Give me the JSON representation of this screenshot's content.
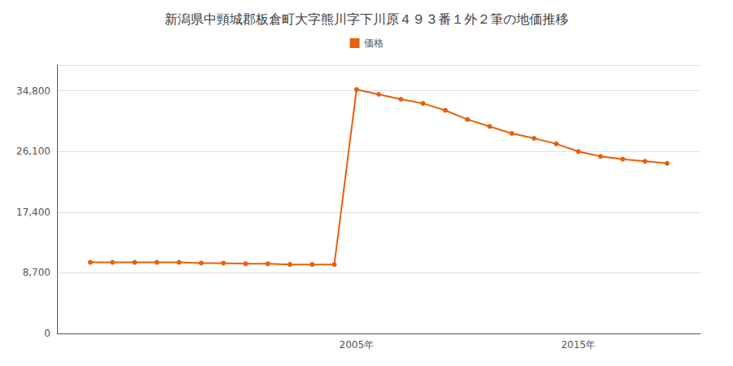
{
  "chart_data": {
    "type": "line",
    "title": "新潟県中頸城郡板倉町大字熊川字下川原４９３番１外２筆の地価推移",
    "x": [
      1993,
      1994,
      1995,
      1996,
      1997,
      1998,
      1999,
      2000,
      2001,
      2002,
      2003,
      2004,
      2005,
      2006,
      2007,
      2008,
      2009,
      2010,
      2011,
      2012,
      2013,
      2014,
      2015,
      2016,
      2017,
      2018,
      2019
    ],
    "series": [
      {
        "name": "価格",
        "color": "#E8610A",
        "marker": "circle",
        "line_style": "solid",
        "values": [
          10200,
          10200,
          10200,
          10200,
          10200,
          10100,
          10100,
          10000,
          10000,
          9900,
          9900,
          9900,
          35000,
          34300,
          33600,
          33000,
          32000,
          30700,
          29700,
          28700,
          28000,
          27200,
          26100,
          25400,
          25000,
          24700,
          24400
        ]
      }
    ],
    "xlim": [
      1991.5,
      2020.5
    ],
    "xticks": [
      {
        "value": 2005,
        "label": "2005年"
      },
      {
        "value": 2015,
        "label": "2015年"
      }
    ],
    "ylim": [
      0,
      38500
    ],
    "yticks": [
      0,
      {
        "value": 8700,
        "label": "8,700"
      },
      {
        "value": 17400,
        "label": "17,400"
      },
      {
        "value": 26100,
        "label": "26,100"
      },
      {
        "value": 34800,
        "label": "34,800"
      }
    ],
    "grid": true,
    "legend": "top"
  }
}
